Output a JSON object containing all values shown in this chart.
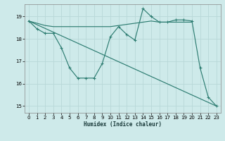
{
  "xlabel": "Humidex (Indice chaleur)",
  "bg_color": "#ceeaea",
  "line_color": "#2e7d72",
  "grid_color": "#b8d8d8",
  "xlim": [
    -0.5,
    23.5
  ],
  "ylim": [
    14.7,
    19.55
  ],
  "xticks": [
    0,
    1,
    2,
    3,
    4,
    5,
    6,
    7,
    8,
    9,
    10,
    11,
    12,
    13,
    14,
    15,
    16,
    17,
    18,
    19,
    20,
    21,
    22,
    23
  ],
  "yticks": [
    15,
    16,
    17,
    18,
    19
  ],
  "line1_x": [
    0,
    1,
    2,
    3,
    4,
    5,
    6,
    7,
    8,
    9,
    10,
    11,
    12,
    13,
    14,
    15,
    16,
    17,
    18,
    19,
    20,
    21,
    22,
    23
  ],
  "line1_y": [
    18.8,
    18.45,
    18.25,
    18.25,
    17.6,
    16.7,
    16.25,
    16.25,
    16.25,
    16.9,
    18.1,
    18.55,
    18.2,
    17.95,
    19.35,
    19.0,
    18.75,
    18.75,
    18.85,
    18.85,
    18.8,
    16.7,
    15.4,
    15.0
  ],
  "line2_x": [
    0,
    1,
    2,
    3,
    10,
    11,
    12,
    13,
    14,
    15,
    16,
    17,
    18,
    19,
    20
  ],
  "line2_y": [
    18.8,
    18.7,
    18.6,
    18.55,
    18.55,
    18.6,
    18.65,
    18.7,
    18.75,
    18.8,
    18.75,
    18.75,
    18.75,
    18.75,
    18.75
  ],
  "line3_x": [
    0,
    23
  ],
  "line3_y": [
    18.8,
    15.0
  ]
}
